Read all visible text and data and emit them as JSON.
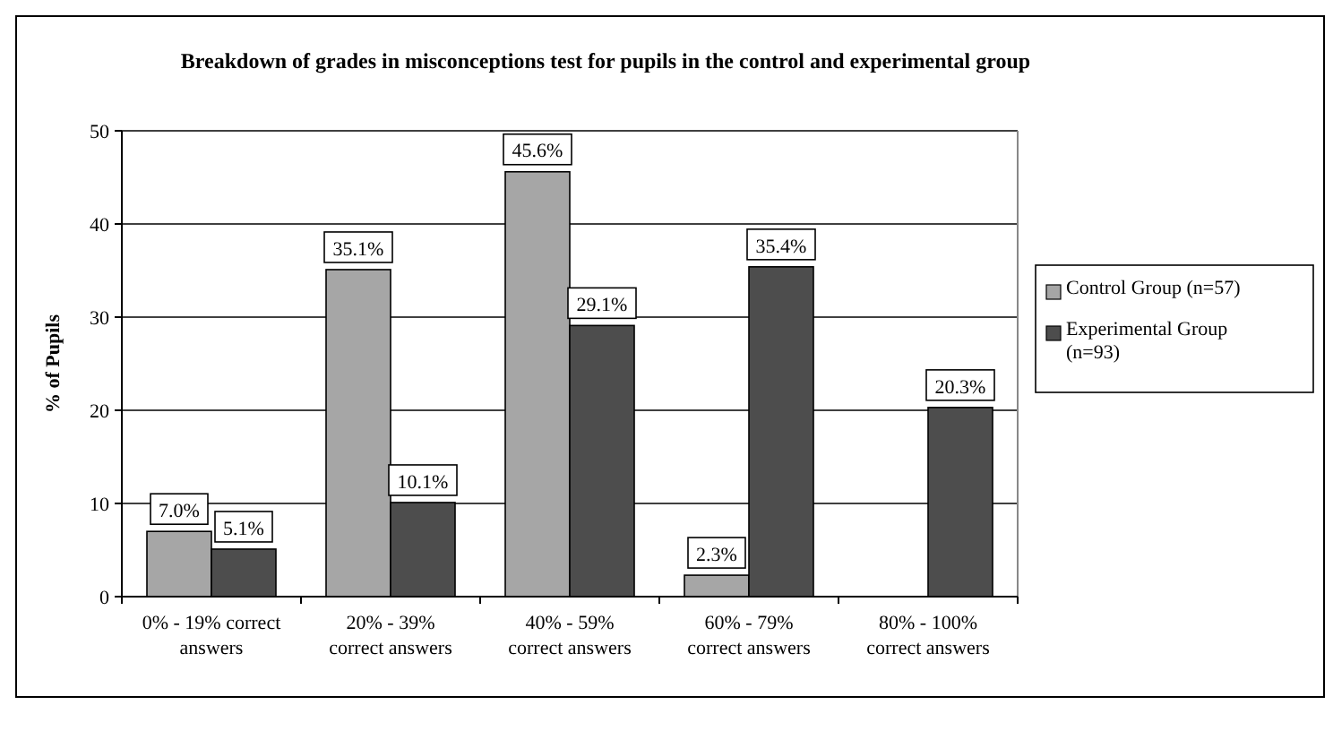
{
  "chart_data": {
    "type": "bar",
    "title": "Breakdown of grades in misconceptions test for pupils in the control and experimental group",
    "ylabel": "% of Pupils",
    "categories": [
      "0% - 19% correct answers",
      "20% - 39% correct answers",
      "40% - 59% correct answers",
      "60% - 79% correct answers",
      "80% - 100% correct answers"
    ],
    "series": [
      {
        "name": "Control Group (n=57)",
        "color": "#a6a6a6",
        "values": [
          7.0,
          35.1,
          45.6,
          2.3,
          null
        ],
        "value_labels": [
          "7.0%",
          "35.1%",
          "45.6%",
          "2.3%",
          null
        ]
      },
      {
        "name": "Experimental Group (n=93)",
        "color": "#4d4d4d",
        "values": [
          5.1,
          10.1,
          29.1,
          35.4,
          20.3
        ],
        "value_labels": [
          "5.1%",
          "10.1%",
          "29.1%",
          "35.4%",
          "20.3%"
        ]
      }
    ],
    "ylim": [
      0,
      50
    ],
    "yticks": [
      0,
      10,
      20,
      30,
      40,
      50
    ],
    "grid": "y",
    "legend": "right"
  }
}
